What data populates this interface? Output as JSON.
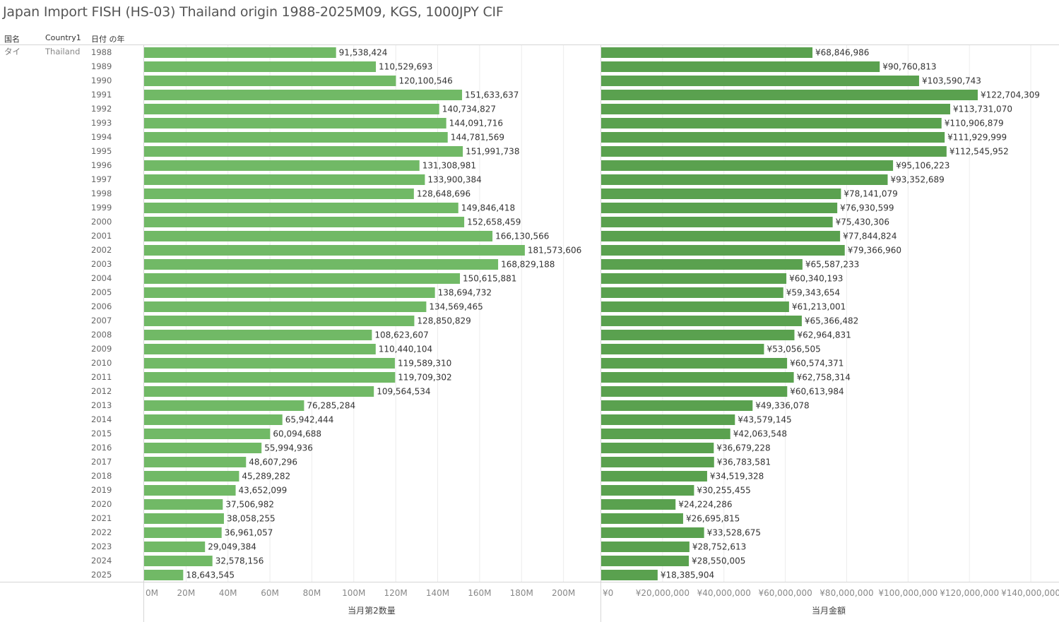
{
  "title": "Japan Import FISH (HS-03) Thailand origin 1988-2025M09, KGS, 1000JPY CIF",
  "headers": {
    "country_jp": "国名",
    "country1": "Country1",
    "year": "日付 の年"
  },
  "row_labels": {
    "country_jp": "タイ",
    "country1": "Thailand"
  },
  "colors": {
    "quantity_bar": "#71b966",
    "amount_bar": "#5aa14f",
    "grid": "#ececec",
    "axis_line": "#d6d6d6",
    "tick_text": "#888888",
    "label_text": "#333333"
  },
  "chart_data": [
    {
      "type": "bar",
      "orientation": "horizontal",
      "title": "",
      "xlabel": "当月第2数量",
      "ylabel": "日付 の年",
      "xlim": [
        0,
        218000000
      ],
      "ticks": [
        0,
        20000000,
        40000000,
        60000000,
        80000000,
        100000000,
        120000000,
        140000000,
        160000000,
        180000000,
        200000000
      ],
      "tick_labels": [
        "0M",
        "20M",
        "40M",
        "60M",
        "80M",
        "100M",
        "120M",
        "140M",
        "160M",
        "180M",
        "200M"
      ],
      "categories": [
        "1988",
        "1989",
        "1990",
        "1991",
        "1992",
        "1993",
        "1994",
        "1995",
        "1996",
        "1997",
        "1998",
        "1999",
        "2000",
        "2001",
        "2002",
        "2003",
        "2004",
        "2005",
        "2006",
        "2007",
        "2008",
        "2009",
        "2010",
        "2011",
        "2012",
        "2013",
        "2014",
        "2015",
        "2016",
        "2017",
        "2018",
        "2019",
        "2020",
        "2021",
        "2022",
        "2023",
        "2024",
        "2025"
      ],
      "values": [
        91538424,
        110529693,
        120100546,
        151633637,
        140734827,
        144091716,
        144781569,
        151991738,
        131308981,
        133900384,
        128648696,
        149846418,
        152658459,
        166130566,
        181573606,
        168829188,
        150615881,
        138694732,
        134569465,
        128850829,
        108623607,
        110440104,
        119589310,
        119709302,
        109564534,
        76285284,
        65942444,
        60094688,
        55994936,
        48607296,
        45289282,
        43652099,
        37506982,
        38058255,
        36961057,
        29049384,
        32578156,
        18643545
      ],
      "data_labels": [
        "91,538,424",
        "110,529,693",
        "120,100,546",
        "151,633,637",
        "140,734,827",
        "144,091,716",
        "144,781,569",
        "151,991,738",
        "131,308,981",
        "133,900,384",
        "128,648,696",
        "149,846,418",
        "152,658,459",
        "166,130,566",
        "181,573,606",
        "168,829,188",
        "150,615,881",
        "138,694,732",
        "134,569,465",
        "128,850,829",
        "108,623,607",
        "110,440,104",
        "119,589,310",
        "119,709,302",
        "109,564,534",
        "76,285,284",
        "65,942,444",
        "60,094,688",
        "55,994,936",
        "48,607,296",
        "45,289,282",
        "43,652,099",
        "37,506,982",
        "38,058,255",
        "36,961,057",
        "29,049,384",
        "32,578,156",
        "18,643,545"
      ]
    },
    {
      "type": "bar",
      "orientation": "horizontal",
      "title": "",
      "xlabel": "当月金額",
      "ylabel": "日付 の年",
      "xlim": [
        0,
        150000000
      ],
      "ticks": [
        0,
        20000000,
        40000000,
        60000000,
        80000000,
        100000000,
        120000000,
        140000000
      ],
      "tick_labels": [
        "¥0",
        "¥20,000,000",
        "¥40,000,000",
        "¥60,000,000",
        "¥80,000,000",
        "¥100,000,000",
        "¥120,000,000",
        "¥140,000,000"
      ],
      "categories": [
        "1988",
        "1989",
        "1990",
        "1991",
        "1992",
        "1993",
        "1994",
        "1995",
        "1996",
        "1997",
        "1998",
        "1999",
        "2000",
        "2001",
        "2002",
        "2003",
        "2004",
        "2005",
        "2006",
        "2007",
        "2008",
        "2009",
        "2010",
        "2011",
        "2012",
        "2013",
        "2014",
        "2015",
        "2016",
        "2017",
        "2018",
        "2019",
        "2020",
        "2021",
        "2022",
        "2023",
        "2024",
        "2025"
      ],
      "values": [
        68846986,
        90760813,
        103590743,
        122704309,
        113731070,
        110906879,
        111929999,
        112545952,
        95106223,
        93352689,
        78141079,
        76930599,
        75430306,
        77844824,
        79366960,
        65587233,
        60340193,
        59343654,
        61213001,
        65366482,
        62964831,
        53056505,
        60574371,
        62758314,
        60613984,
        49336078,
        43579145,
        42063548,
        36679228,
        36783581,
        34519328,
        30255455,
        24224286,
        26695815,
        33528675,
        28752613,
        28550005,
        18385904
      ],
      "data_labels": [
        "¥68,846,986",
        "¥90,760,813",
        "¥103,590,743",
        "¥122,704,309",
        "¥113,731,070",
        "¥110,906,879",
        "¥111,929,999",
        "¥112,545,952",
        "¥95,106,223",
        "¥93,352,689",
        "¥78,141,079",
        "¥76,930,599",
        "¥75,430,306",
        "¥77,844,824",
        "¥79,366,960",
        "¥65,587,233",
        "¥60,340,193",
        "¥59,343,654",
        "¥61,213,001",
        "¥65,366,482",
        "¥62,964,831",
        "¥53,056,505",
        "¥60,574,371",
        "¥62,758,314",
        "¥60,613,984",
        "¥49,336,078",
        "¥43,579,145",
        "¥42,063,548",
        "¥36,679,228",
        "¥36,783,581",
        "¥34,519,328",
        "¥30,255,455",
        "¥24,224,286",
        "¥26,695,815",
        "¥33,528,675",
        "¥28,752,613",
        "¥28,550,005",
        "¥18,385,904"
      ]
    }
  ]
}
